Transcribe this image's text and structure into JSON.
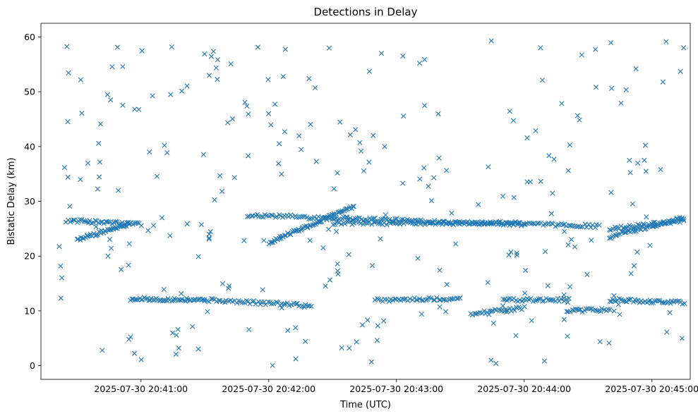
{
  "chart_data": {
    "type": "scatter",
    "title": "Detections in Delay",
    "xlabel": "Time (UTC)",
    "ylabel": "Bistatic Delay (km)",
    "x_ticks": [
      "2025-07-30 20:41:00",
      "2025-07-30 20:42:00",
      "2025-07-30 20:43:00",
      "2025-07-30 20:44:00",
      "2025-07-30 20:45:00"
    ],
    "y_ticks": [
      0,
      10,
      20,
      30,
      40,
      50,
      60
    ],
    "xlim": [
      "2025-07-30 20:40:13",
      "2025-07-30 20:45:18"
    ],
    "ylim": [
      -2.5,
      62.5
    ],
    "marker": "x",
    "color": "#1f77b4",
    "grid": false,
    "series": [
      {
        "tracks": [
          {
            "x_start": "2025-07-30 20:40:25",
            "x_end": "2025-07-30 20:41:00",
            "y_start": 26.5,
            "y_end": 25.8,
            "points": 45
          },
          {
            "x_start": "2025-07-30 20:40:30",
            "x_end": "2025-07-30 20:40:55",
            "y_start": 23.0,
            "y_end": 26.0,
            "points": 40
          },
          {
            "x_start": "2025-07-30 20:41:50",
            "x_end": "2025-07-30 20:43:40",
            "y_start": 27.5,
            "y_end": 26.0,
            "points": 120
          },
          {
            "x_start": "2025-07-30 20:42:00",
            "x_end": "2025-07-30 20:42:40",
            "y_start": 22.5,
            "y_end": 29.0,
            "points": 70
          },
          {
            "x_start": "2025-07-30 20:42:30",
            "x_end": "2025-07-30 20:44:00",
            "y_start": 26.0,
            "y_end": 26.0,
            "points": 90
          },
          {
            "x_start": "2025-07-30 20:43:40",
            "x_end": "2025-07-30 20:44:35",
            "y_start": 26.0,
            "y_end": 25.5,
            "points": 60
          },
          {
            "x_start": "2025-07-30 20:44:40",
            "x_end": "2025-07-30 20:45:15",
            "y_start": 23.5,
            "y_end": 27.0,
            "points": 50
          },
          {
            "x_start": "2025-07-30 20:44:40",
            "x_end": "2025-07-30 20:45:15",
            "y_start": 25.0,
            "y_end": 26.5,
            "points": 45
          },
          {
            "x_start": "2025-07-30 20:40:55",
            "x_end": "2025-07-30 20:41:30",
            "y_start": 12.2,
            "y_end": 12.0,
            "points": 50
          },
          {
            "x_start": "2025-07-30 20:41:30",
            "x_end": "2025-07-30 20:42:20",
            "y_start": 12.0,
            "y_end": 11.0,
            "points": 55
          },
          {
            "x_start": "2025-07-30 20:42:50",
            "x_end": "2025-07-30 20:43:30",
            "y_start": 12.0,
            "y_end": 12.2,
            "points": 45
          },
          {
            "x_start": "2025-07-30 20:43:35",
            "x_end": "2025-07-30 20:44:00",
            "y_start": 9.5,
            "y_end": 10.5,
            "points": 30
          },
          {
            "x_start": "2025-07-30 20:43:50",
            "x_end": "2025-07-30 20:44:20",
            "y_start": 12.0,
            "y_end": 12.0,
            "points": 35
          },
          {
            "x_start": "2025-07-30 20:44:20",
            "x_end": "2025-07-30 20:44:40",
            "y_start": 10.0,
            "y_end": 10.2,
            "points": 25
          },
          {
            "x_start": "2025-07-30 20:44:40",
            "x_end": "2025-07-30 20:45:15",
            "y_start": 12.0,
            "y_end": 11.5,
            "points": 45
          }
        ],
        "scatter_density_per_minute": 55,
        "scatter_y_range": [
          0,
          60
        ]
      }
    ]
  }
}
